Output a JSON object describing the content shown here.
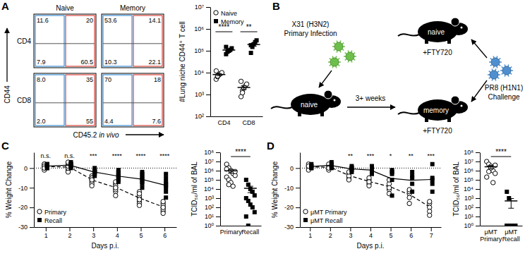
{
  "chart_data": [
    {
      "type": "flow",
      "panel": "A",
      "column_titles": [
        "Naive",
        "Memory"
      ],
      "row_titles": [
        "CD4",
        "CD8"
      ],
      "xlabel": "CD45.2 in vivo",
      "ylabel": "CD44",
      "data_labels": true,
      "plots": [
        [
          {
            "values": [
              11.6,
              20,
              7.9,
              60.5
            ],
            "value_labels": [
              "11.6",
              "20",
              "7.9",
              "60.5"
            ]
          },
          {
            "values": [
              53.6,
              14.1,
              10.3,
              22.1
            ],
            "value_labels": [
              "53.6",
              "14.1",
              "10.3",
              "22.1"
            ]
          }
        ],
        [
          {
            "values": [
              8,
              35,
              2,
              55
            ],
            "value_labels": [
              "8.0",
              "35",
              "2.0",
              "55"
            ]
          },
          {
            "values": [
              70,
              18,
              4.4,
              7.6
            ],
            "value_labels": [
              "70",
              "18",
              "4.4",
              "7.6"
            ]
          }
        ]
      ]
    },
    {
      "type": "scatter",
      "ylabel": "#Lung niche CD44⁺ T cell",
      "categories": [
        "CD4",
        "CD8"
      ],
      "log": "y",
      "ylim": [
        100,
        10000000
      ],
      "yticks": [
        {
          "value": 100,
          "label": "10²"
        },
        {
          "value": 1000,
          "label": "10³"
        },
        {
          "value": 10000,
          "label": "10⁴"
        },
        {
          "value": 100000,
          "label": "10⁵"
        },
        {
          "value": 1000000,
          "label": "10⁶"
        },
        {
          "value": 10000000,
          "label": "10⁷"
        }
      ],
      "legend": "top-left",
      "annotations": [
        "****",
        "**"
      ],
      "series": [
        {
          "name": "Naive",
          "color": "#000000",
          "marker": "circle-open",
          "values": [
            [
              5000,
              6500,
              8000,
              9000,
              10000,
              12000,
              7000
            ],
            [
              800,
              1500,
              2000,
              2500,
              3000,
              4000,
              1200
            ]
          ],
          "mean": [
            8200,
            2100
          ],
          "sem": [
            900,
            400
          ]
        },
        {
          "name": "Memory",
          "color": "#000000",
          "marker": "square",
          "values": [
            [
              70000,
              90000,
              100000,
              110000,
              130000,
              150000
            ],
            [
              80000,
              150000,
              200000,
              250000,
              300000,
              180000
            ]
          ],
          "mean": [
            108000,
            193000
          ],
          "sem": [
            12000,
            32000
          ]
        }
      ]
    },
    {
      "type": "line",
      "panel": "C",
      "xlabel": "Days p.i.",
      "ylabel": "% Weight Change",
      "x": [
        1,
        2,
        3,
        4,
        5,
        6
      ],
      "xlim": [
        0.5,
        6.5
      ],
      "xticks": [
        1,
        2,
        3,
        4,
        5,
        6
      ],
      "ylim": [
        -30,
        8
      ],
      "yticks": [
        -30,
        -20,
        -10,
        0
      ],
      "reference_line": 0,
      "legend": "bottom-left",
      "annotations": [
        "n.s.",
        "n.s.",
        "***",
        "****",
        "****",
        "****"
      ],
      "series": [
        {
          "name": "Primary",
          "color": "#000000",
          "marker": "circle-open",
          "line_style": "dashed",
          "values": [
            0.8,
            0.5,
            -6.3,
            -10.1,
            -15.5,
            -20
          ],
          "points": [
            [
              2,
              1,
              0,
              1,
              -1,
              2,
              1,
              0
            ],
            [
              1,
              0,
              -1,
              2,
              -2,
              0,
              1,
              3
            ],
            [
              -4,
              -5,
              -6,
              -7,
              -8,
              -5,
              -9,
              -6
            ],
            [
              -8,
              -10,
              -12,
              -9,
              -11,
              -14,
              -7,
              -10
            ],
            [
              -12,
              -15,
              -17,
              -14,
              -18,
              -13,
              -16,
              -19
            ],
            [
              -18,
              -20,
              -22,
              -19,
              -21,
              -20,
              -23,
              -17
            ]
          ]
        },
        {
          "name": "Recall",
          "color": "#000000",
          "marker": "square",
          "line_style": "solid",
          "values": [
            1,
            1.5,
            -1.9,
            -4,
            -5.6,
            -8.6
          ],
          "points": [
            [
              1,
              2,
              0,
              1,
              2,
              1,
              0,
              1
            ],
            [
              2,
              1,
              3,
              0,
              1,
              2,
              1,
              2
            ],
            [
              -1,
              -2,
              0,
              -3,
              -2,
              -1,
              -4,
              -2
            ],
            [
              -2,
              -4,
              -3,
              -6,
              -5,
              -1,
              -4,
              -7
            ],
            [
              -3,
              -6,
              -4,
              -8,
              -2,
              -10,
              -5,
              -7
            ],
            [
              -5,
              -9,
              -12,
              -7,
              -15,
              -3,
              -10,
              -8
            ]
          ]
        }
      ]
    },
    {
      "type": "scatter",
      "ylabel": "TCID₅₀/ml of BAL",
      "categories": [
        "Primary",
        "Recall"
      ],
      "log": "y",
      "ylim": [
        1,
        100000000
      ],
      "yticks": [
        {
          "value": 1,
          "label": "10⁰"
        },
        {
          "value": 10,
          "label": "10¹"
        },
        {
          "value": 100,
          "label": "10²"
        },
        {
          "value": 1000,
          "label": "10³"
        },
        {
          "value": 10000,
          "label": "10⁴"
        },
        {
          "value": 100000,
          "label": "10⁵"
        },
        {
          "value": 1000000,
          "label": "10⁶"
        },
        {
          "value": 10000000,
          "label": "10⁷"
        },
        {
          "value": 100000000,
          "label": "10⁸"
        }
      ],
      "annotation": "****",
      "series": [
        {
          "color": "#000000",
          "marker": "circle-open",
          "values": [
            [
              5000000,
              2000000,
              1000000,
              500000,
              300000,
              200000,
              100000,
              50000,
              20000,
              800000,
              1500000,
              30000
            ],
            null
          ],
          "mean": [
            960000,
            null
          ],
          "sem": [
            420000,
            null
          ]
        },
        {
          "color": "#000000",
          "marker": "square",
          "values": [
            null,
            [
              100000,
              30000,
              10000,
              5000,
              2000,
              1000,
              500,
              200,
              100,
              30,
              10,
              1
            ]
          ],
          "mean": [
            null,
            12000
          ],
          "sem": [
            null,
            8000
          ]
        }
      ]
    },
    {
      "type": "line",
      "panel": "D",
      "xlabel": "Days p.i.",
      "ylabel": "% Weight Change",
      "x": [
        1,
        2,
        3,
        4,
        5,
        6,
        7
      ],
      "xlim": [
        0.5,
        7.5
      ],
      "xticks": [
        1,
        2,
        3,
        4,
        5,
        6,
        7
      ],
      "ylim": [
        -30,
        8
      ],
      "yticks": [
        -30,
        -20,
        -10,
        0
      ],
      "reference_line": 0,
      "legend": "bottom-left",
      "annotations": [
        null,
        null,
        "**",
        "***",
        "*",
        "**",
        "***"
      ],
      "series": [
        {
          "name": "μMT Primary",
          "color": "#000000",
          "marker": "circle-open",
          "line_style": "dashed",
          "values": [
            0.6,
            0.4,
            -4,
            -7,
            -9.6,
            -13.8,
            -20.2
          ],
          "points": [
            [
              1,
              0,
              2,
              -1,
              1
            ],
            [
              0,
              1,
              -1,
              2,
              0
            ],
            [
              -3,
              -5,
              -4,
              -6,
              -2
            ],
            [
              -6,
              -8,
              -5,
              -9,
              -7
            ],
            [
              -8,
              -11,
              -13,
              -10,
              -6
            ],
            [
              -13,
              -15,
              -12,
              -18,
              -11
            ],
            [
              -18,
              -20,
              -22,
              -17,
              -24
            ]
          ]
        },
        {
          "name": "μMT Recall",
          "color": "#000000",
          "marker": "square",
          "line_style": "solid",
          "values": [
            0.8,
            1.4,
            -0.4,
            -1,
            -5.2,
            -6.2,
            -5.8
          ],
          "points": [
            [
              1,
              2,
              0,
              1,
              0
            ],
            [
              1,
              2,
              3,
              0,
              1
            ],
            [
              0,
              -1,
              1,
              -2,
              0
            ],
            [
              -1,
              -3,
              0,
              -2,
              1
            ],
            [
              -3,
              -6,
              -2,
              -14,
              -1
            ],
            [
              -4,
              -8,
              -2,
              -12,
              -5
            ],
            [
              -5,
              -8,
              2,
              -12,
              -6
            ]
          ]
        }
      ]
    },
    {
      "type": "scatter",
      "ylabel": "TCID₅₀/ml of BAL",
      "categories": [
        "μMT Primary",
        "μMT Recall"
      ],
      "log": "y",
      "ylim": [
        1,
        100000000
      ],
      "yticks": [
        {
          "value": 1,
          "label": "10⁰"
        },
        {
          "value": 10,
          "label": "10¹"
        },
        {
          "value": 100,
          "label": "10²"
        },
        {
          "value": 1000,
          "label": "10³"
        },
        {
          "value": 10000,
          "label": "10⁴"
        },
        {
          "value": 100000,
          "label": "10⁵"
        },
        {
          "value": 1000000,
          "label": "10⁶"
        },
        {
          "value": 10000000,
          "label": "10⁷"
        },
        {
          "value": 100000000,
          "label": "10⁸"
        }
      ],
      "annotation": "****",
      "series": [
        {
          "color": "#000000",
          "marker": "circle-open",
          "values": [
            [
              10000000,
              5000000,
              3000000,
              1000000,
              500000,
              200000,
              800000,
              2000000,
              50000,
              4000000
            ],
            null
          ],
          "mean": [
            2650000,
            null
          ],
          "sem": [
            1000000,
            null
          ]
        },
        {
          "color": "#000000",
          "marker": "square",
          "values": [
            null,
            [
              5000,
              1000,
              1,
              1,
              1,
              1,
              1,
              1,
              1,
              1,
              1,
              1
            ]
          ],
          "mean": [
            null,
            500
          ],
          "sem": [
            null,
            420
          ]
        }
      ]
    }
  ],
  "diagram": {
    "panel": "B",
    "primary_virus": {
      "name": "X31 (H3N2)",
      "label": "Primary Infection"
    },
    "challenge_virus": {
      "name": "PR8 (H1N1)",
      "label": "Challenge"
    },
    "mice": [
      {
        "label": "naive"
      },
      {
        "label": "naive",
        "treatment": "+FTY720"
      },
      {
        "label": "memory",
        "treatment": "+FTY720"
      }
    ],
    "interval": "3+ weeks"
  }
}
